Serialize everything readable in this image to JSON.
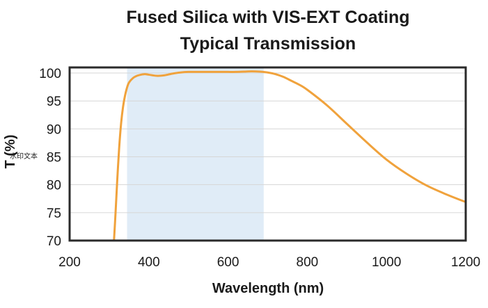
{
  "chart_data": {
    "type": "line",
    "title": "Fused Silica with VIS-EXT Coating",
    "subtitle": "Typical Transmission",
    "xlabel": "Wavelength (nm)",
    "ylabel": "T (%)",
    "xlim": [
      200,
      1200
    ],
    "ylim": [
      70,
      101
    ],
    "x_ticks": [
      200,
      400,
      600,
      800,
      1000,
      1200
    ],
    "y_ticks": [
      70,
      75,
      80,
      85,
      90,
      95,
      100
    ],
    "grid": "horizontal",
    "highlight_band": {
      "x_start": 345,
      "x_end": 690,
      "color": "#e0ecf7"
    },
    "series": [
      {
        "color": "#f0a23c",
        "x": [
          312,
          316,
          320,
          325,
          330,
          335,
          340,
          345,
          350,
          360,
          370,
          380,
          390,
          400,
          420,
          440,
          460,
          480,
          500,
          520,
          540,
          560,
          580,
          600,
          620,
          640,
          660,
          680,
          700,
          720,
          740,
          760,
          780,
          800,
          850,
          900,
          950,
          1000,
          1050,
          1100,
          1150,
          1200
        ],
        "y": [
          70.0,
          75.0,
          80.5,
          86.5,
          91.0,
          94.0,
          96.0,
          97.4,
          98.3,
          99.1,
          99.5,
          99.7,
          99.8,
          99.7,
          99.5,
          99.6,
          99.9,
          100.1,
          100.2,
          100.2,
          100.2,
          100.2,
          100.2,
          100.2,
          100.2,
          100.25,
          100.3,
          100.25,
          100.1,
          99.8,
          99.3,
          98.6,
          97.9,
          97.0,
          94.2,
          90.9,
          87.6,
          84.5,
          82.0,
          79.9,
          78.3,
          76.9
        ]
      }
    ]
  },
  "watermark_text": "水印文本",
  "colors": {
    "line": "#f0a23c",
    "band": "#e0ecf7",
    "frame": "#2a2a2a",
    "grid": "#d6d6d6"
  }
}
